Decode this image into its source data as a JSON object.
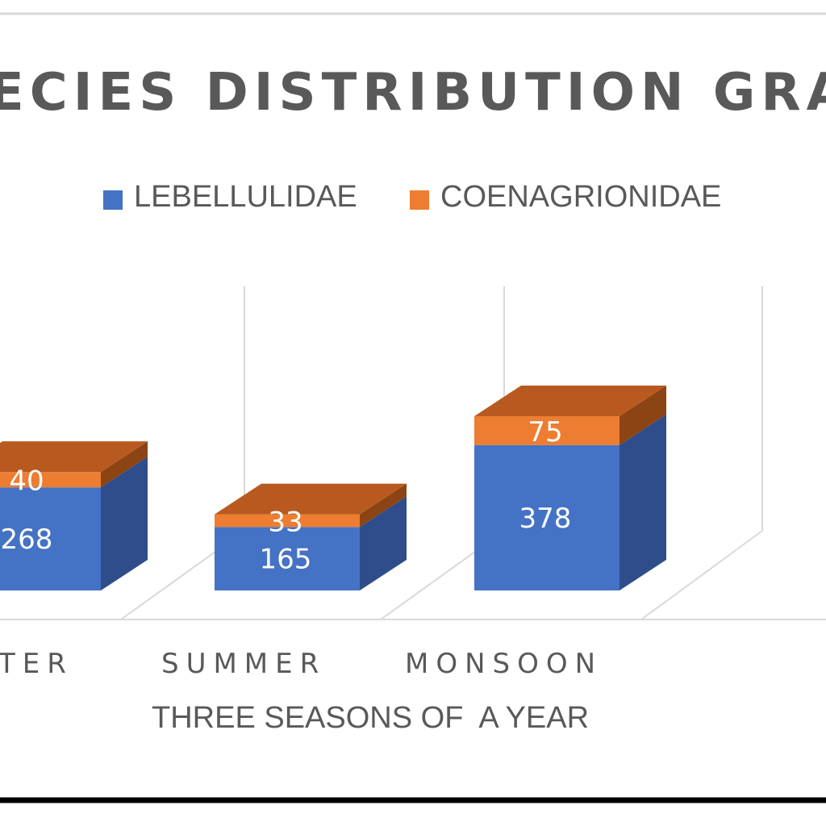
{
  "chart_data": {
    "type": "bar",
    "subtype": "stacked-3d-column",
    "title": "SPECIES DISTRIBUTION GRAPH",
    "title_visible": "ECIES DISTRIBUTION GRA",
    "xlabel": "THREE SEASONS OF  A YEAR",
    "ylabel": "",
    "categories": [
      "WINTER",
      "SUMMER",
      "MONSOON"
    ],
    "categories_visible": [
      "TER",
      "SUMMER",
      "MONSOON"
    ],
    "series": [
      {
        "name": "LEBELLULIDAE",
        "values": [
          268,
          165,
          378
        ],
        "color": "#4472c4"
      },
      {
        "name": "COENAGRIONIDAE",
        "values": [
          40,
          33,
          75
        ],
        "color": "#ed7d31"
      }
    ],
    "data_labels": true,
    "legend_position": "top",
    "grid": true,
    "colors": {
      "text": "#595959",
      "title": "#595959",
      "blue_front": "#4472c4",
      "blue_side": "#2e4d8a",
      "orange_front": "#ed7d31",
      "orange_top": "#b85a1f",
      "grid": "#d9d9d9"
    }
  }
}
